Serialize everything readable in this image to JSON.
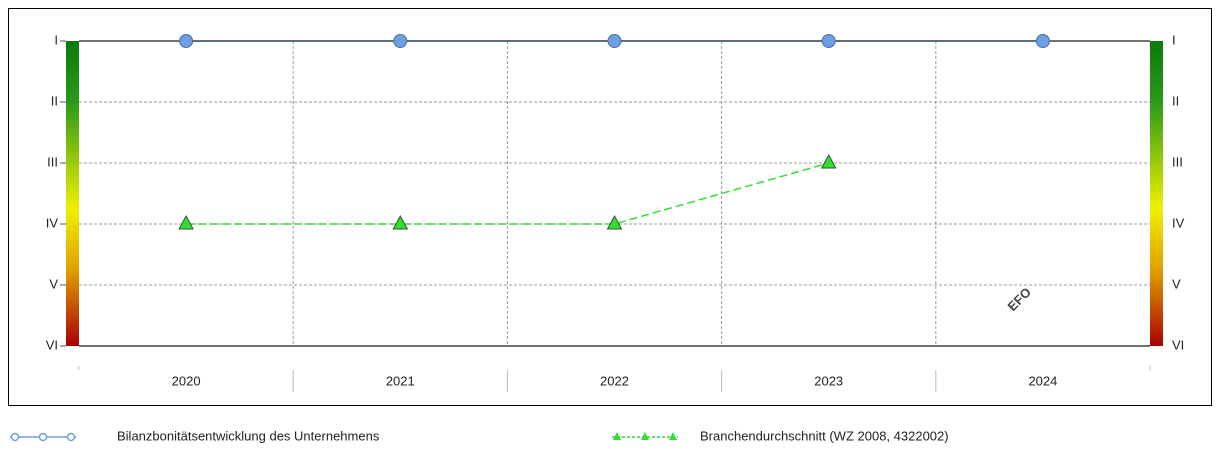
{
  "chart_data": {
    "type": "line",
    "categories": [
      "2020",
      "2021",
      "2022",
      "2023",
      "2024"
    ],
    "series": [
      {
        "name": "Bilanzbonitätsentwicklung des Unternehmens",
        "color": "#6f9fe0",
        "marker": "circle",
        "values": [
          1,
          1,
          1,
          1,
          1
        ]
      },
      {
        "name": "Branchendurchschnitt (WZ 2008, 4322002)",
        "color": "#33dd33",
        "marker": "triangle",
        "dashed": true,
        "values": [
          4,
          4,
          4,
          3,
          null
        ]
      }
    ],
    "ylim": [
      1,
      6
    ],
    "y_inverted": true,
    "yticks": [
      {
        "value": 1,
        "label": "I"
      },
      {
        "value": 2,
        "label": "II"
      },
      {
        "value": 3,
        "label": "III"
      },
      {
        "value": 4,
        "label": "IV"
      },
      {
        "value": 5,
        "label": "V"
      },
      {
        "value": 6,
        "label": "VI"
      }
    ],
    "grid": true,
    "legend": "bottom",
    "watermark": "EFO"
  }
}
